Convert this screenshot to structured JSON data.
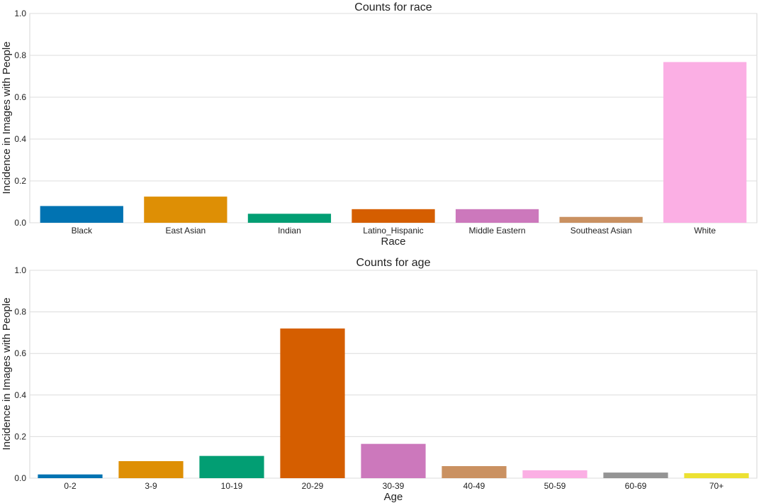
{
  "chart_data": [
    {
      "type": "bar",
      "title": "Counts for race",
      "xlabel": "Race",
      "ylabel": "Incidence in Images with People",
      "ylim": [
        0,
        1.0
      ],
      "yticks": [
        "0.0",
        "0.2",
        "0.4",
        "0.6",
        "0.8",
        "1.0"
      ],
      "grid": true,
      "categories": [
        "Black",
        "East Asian",
        "Indian",
        "Latino_Hispanic",
        "Middle Eastern",
        "Southeast Asian",
        "White"
      ],
      "values": [
        0.08,
        0.125,
        0.043,
        0.065,
        0.065,
        0.028,
        0.768
      ],
      "colors": [
        "#0173b2",
        "#de8f05",
        "#029e73",
        "#d55e00",
        "#cc78bc",
        "#ca9161",
        "#fbafe4"
      ]
    },
    {
      "type": "bar",
      "title": "Counts for age",
      "xlabel": "Age",
      "ylabel": "Incidence in Images with People",
      "ylim": [
        0,
        1.0
      ],
      "yticks": [
        "0.0",
        "0.2",
        "0.4",
        "0.6",
        "0.8",
        "1.0"
      ],
      "grid": true,
      "categories": [
        "0-2",
        "3-9",
        "10-19",
        "20-29",
        "30-39",
        "40-49",
        "50-59",
        "60-69",
        "70+"
      ],
      "values": [
        0.018,
        0.082,
        0.107,
        0.72,
        0.165,
        0.058,
        0.038,
        0.027,
        0.024
      ],
      "colors": [
        "#0173b2",
        "#de8f05",
        "#029e73",
        "#d55e00",
        "#cc78bc",
        "#ca9161",
        "#fbafe4",
        "#949494",
        "#ece133"
      ]
    }
  ]
}
